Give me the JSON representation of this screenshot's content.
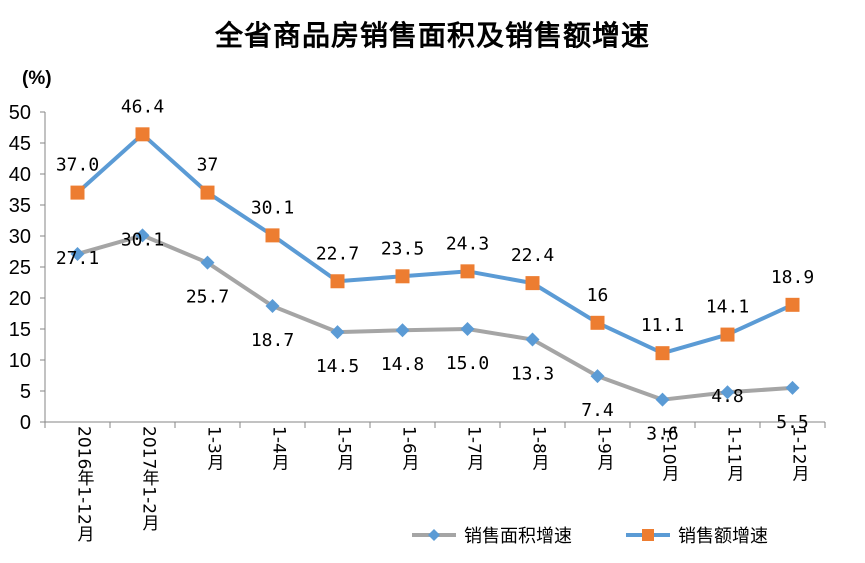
{
  "chart_data": {
    "type": "line",
    "title": "全省商品房销售面积及销售额增速",
    "ylabel": "(%)",
    "xlabel": "",
    "ylim": [
      0,
      50
    ],
    "yticks": [
      0,
      5,
      10,
      15,
      20,
      25,
      30,
      35,
      40,
      45,
      50
    ],
    "categories": [
      "2016年1-12月",
      "2017年1-2月",
      "1-3月",
      "1-4月",
      "1-5月",
      "1-6月",
      "1-7月",
      "1-8月",
      "1-9月",
      "1-10月",
      "1-11月",
      "1-12月"
    ],
    "series": [
      {
        "name": "销售面积增速",
        "color": "#a5a5a5",
        "marker": "diamond",
        "marker_color": "#5b9bd5",
        "values": [
          27.1,
          30.1,
          25.7,
          18.7,
          14.5,
          14.8,
          15.0,
          13.3,
          7.4,
          3.6,
          4.8,
          5.5
        ],
        "labels": [
          "27.1",
          "30.1",
          "25.7",
          "18.7",
          "14.5",
          "14.8",
          "15.0",
          "13.3",
          "7.4",
          "3.6",
          "4.8",
          "5.5"
        ]
      },
      {
        "name": "销售额增速",
        "color": "#5b9bd5",
        "marker": "square",
        "marker_color": "#ed7d31",
        "values": [
          37.0,
          46.4,
          37,
          30.1,
          22.7,
          23.5,
          24.3,
          22.4,
          16,
          11.1,
          14.1,
          18.9
        ],
        "labels": [
          "37.0",
          "46.4",
          "37",
          "30.1",
          "22.7",
          "23.5",
          "24.3",
          "22.4",
          "16",
          "11.1",
          "14.1",
          "18.9"
        ]
      }
    ],
    "grid": false,
    "legend_position": "bottom-right"
  }
}
